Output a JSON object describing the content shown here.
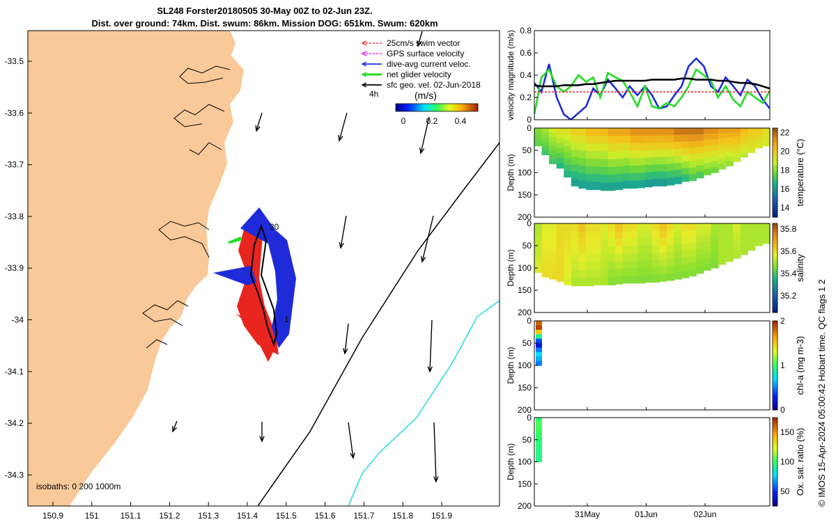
{
  "title": {
    "line1": "SL248 Forster20180505 30-May 00Z to 02-Jun 23Z.",
    "line2": "Dist. over ground: 74km. Dist. swum: 86km. Mission DOG: 651km. Swum: 620km"
  },
  "colors": {
    "land": "#f9c99a",
    "swim": "#e8251f",
    "gps": "#ff00ff",
    "current": "#1f2bd8",
    "net": "#22dd22",
    "geo": "#000000",
    "isobath200": "#000000",
    "isobath1000": "#22dddd",
    "track": "#000000"
  },
  "map": {
    "legend": [
      "25cm/s swim vector",
      "GPS surface velocity",
      "dive-avg current veloc.",
      "net glider velocity",
      "sfc geo. vel. 02-Jun-2018"
    ],
    "legend_time": "4h",
    "colorbar_unit": "(m/s)",
    "colorbar_ticks": [
      "0",
      "0.2",
      "0.4"
    ],
    "isobaths_label": "isobaths: 0   200  1000m",
    "track_labels": [
      "30",
      "1"
    ],
    "lon_ticks": [
      "150.9",
      "151",
      "151.1",
      "151.2",
      "151.3",
      "151.4",
      "151.5",
      "151.6",
      "151.7",
      "151.8",
      "151.9"
    ],
    "lat_ticks": [
      "-33.5",
      "-33.6",
      "-33.7",
      "-33.8",
      "-33.9",
      "-34",
      "-34.1",
      "-34.2",
      "-34.3"
    ]
  },
  "chart_data": [
    {
      "type": "line",
      "title": "",
      "ylabel": "velocity magnitude (m/s)",
      "ylim": [
        0,
        0.8
      ],
      "yticks": [
        "0",
        "0.2",
        "0.4",
        "0.6",
        "0.8"
      ],
      "x_days": [
        0,
        0.12,
        0.25,
        0.38,
        0.5,
        0.62,
        0.75,
        0.88,
        1.0,
        1.12,
        1.25,
        1.38,
        1.5,
        1.62,
        1.75,
        1.88,
        2.0,
        2.12,
        2.25,
        2.38,
        2.5,
        2.62,
        2.75,
        2.88,
        3.0,
        3.12,
        3.25,
        3.38,
        3.5,
        3.62,
        3.75,
        3.88,
        4.0
      ],
      "series": [
        {
          "name": "dive-avg current",
          "color": "#1f2bd8",
          "values": [
            0.33,
            0.25,
            0.5,
            0.2,
            0.05,
            0.0,
            0.06,
            0.12,
            0.28,
            0.22,
            0.36,
            0.28,
            0.2,
            0.3,
            0.22,
            0.3,
            0.22,
            0.1,
            0.12,
            0.22,
            0.3,
            0.48,
            0.55,
            0.48,
            0.3,
            0.25,
            0.38,
            0.3,
            0.22,
            0.36,
            0.3,
            0.18,
            0.1
          ]
        },
        {
          "name": "net glider velocity",
          "color": "#22dd22",
          "values": [
            0.05,
            0.38,
            0.45,
            0.3,
            0.25,
            0.3,
            0.4,
            0.34,
            0.38,
            0.2,
            0.42,
            0.38,
            0.35,
            0.25,
            0.12,
            0.3,
            0.12,
            0.1,
            0.15,
            0.12,
            0.2,
            0.3,
            0.45,
            0.4,
            0.35,
            0.2,
            0.3,
            0.18,
            0.12,
            0.25,
            0.2,
            0.15,
            0.26
          ]
        },
        {
          "name": "swim vector",
          "color": "#e8251f",
          "values": [
            0.25,
            0.25,
            0.25,
            0.25,
            0.25,
            0.25,
            0.25,
            0.25,
            0.25,
            0.25,
            0.25,
            0.25,
            0.25,
            0.25,
            0.25,
            0.25,
            0.25,
            0.25,
            0.25,
            0.25,
            0.25,
            0.25,
            0.25,
            0.25,
            0.25,
            0.25,
            0.25,
            0.25,
            0.25,
            0.25,
            0.25,
            0.25,
            0.25
          ]
        },
        {
          "name": "geo velocity",
          "color": "#000000",
          "values": [
            0.31,
            0.3,
            0.3,
            0.3,
            0.31,
            0.31,
            0.31,
            0.32,
            0.32,
            0.33,
            0.34,
            0.35,
            0.35,
            0.35,
            0.35,
            0.35,
            0.36,
            0.36,
            0.36,
            0.36,
            0.37,
            0.37,
            0.36,
            0.36,
            0.36,
            0.35,
            0.35,
            0.34,
            0.33,
            0.33,
            0.32,
            0.3,
            0.28
          ]
        }
      ]
    },
    {
      "type": "heatmap",
      "ylabel": "Depth (m)",
      "ylim": [
        0,
        200
      ],
      "yticks": [
        "0",
        "50",
        "100",
        "150",
        "200"
      ],
      "clabel": "temperature (°C)",
      "cticks": [
        "14",
        "16",
        "18",
        "20",
        "22"
      ],
      "crange": [
        13,
        22.5
      ],
      "colormap": "thermal",
      "base_depth_m": [
        40,
        60,
        80,
        90,
        110,
        130,
        135,
        138,
        138,
        140,
        140,
        138,
        135,
        135,
        134,
        132,
        130,
        130,
        128,
        125,
        120,
        118,
        112,
        105,
        100,
        92,
        85,
        75,
        65,
        55,
        45,
        40,
        32
      ],
      "surface_value": [
        18,
        18.5,
        19,
        19.5,
        19.5,
        20,
        20,
        20.5,
        20.5,
        20.5,
        21,
        21,
        21,
        21.5,
        21.5,
        21.5,
        21.5,
        21.5,
        21.5,
        22,
        22,
        22,
        22,
        21.5,
        21.5,
        21,
        21,
        21,
        20.5,
        20,
        20,
        19.5,
        19
      ],
      "bottom_value": [
        17.5,
        17,
        17,
        16.5,
        16.5,
        16,
        16,
        16,
        16,
        16,
        16,
        16,
        16,
        16,
        16,
        15.8,
        15.8,
        15.8,
        16,
        16,
        16.5,
        17,
        17,
        17.5,
        17.5,
        18,
        18,
        18.5,
        18.5,
        19,
        19,
        19,
        19
      ]
    },
    {
      "type": "heatmap",
      "ylabel": "Depth (m)",
      "ylim": [
        0,
        200
      ],
      "yticks": [
        "0",
        "50",
        "100",
        "150",
        "200"
      ],
      "clabel": "salinity",
      "cticks": [
        "35.2",
        "35.4",
        "35.6",
        "35.8"
      ],
      "crange": [
        35.05,
        35.85
      ],
      "colormap": "haline",
      "base_depth_m": [
        110,
        120,
        125,
        130,
        138,
        140,
        140,
        140,
        138,
        138,
        138,
        136,
        134,
        134,
        134,
        132,
        132,
        130,
        128,
        125,
        122,
        118,
        112,
        105,
        100,
        92,
        85,
        78,
        70,
        60,
        50,
        45,
        40
      ],
      "surface_value": [
        35.5,
        35.55,
        35.55,
        35.6,
        35.6,
        35.6,
        35.65,
        35.6,
        35.6,
        35.55,
        35.6,
        35.65,
        35.6,
        35.6,
        35.55,
        35.55,
        35.6,
        35.65,
        35.6,
        35.55,
        35.6,
        35.6,
        35.55,
        35.55,
        35.5,
        35.5,
        35.5,
        35.55,
        35.5,
        35.5,
        35.5,
        35.5,
        35.5
      ],
      "bottom_value": [
        35.55,
        35.6,
        35.6,
        35.6,
        35.55,
        35.5,
        35.5,
        35.5,
        35.5,
        35.5,
        35.45,
        35.45,
        35.45,
        35.45,
        35.45,
        35.45,
        35.45,
        35.45,
        35.45,
        35.45,
        35.45,
        35.45,
        35.45,
        35.45,
        35.45,
        35.5,
        35.5,
        35.5,
        35.5,
        35.5,
        35.5,
        35.5,
        35.5
      ]
    },
    {
      "type": "heatmap",
      "ylabel": "Depth (m)",
      "ylim": [
        0,
        200
      ],
      "yticks": [
        "0",
        "50",
        "100",
        "150",
        "200"
      ],
      "clabel": "chl-a (mg m-3)",
      "cticks": [
        "0",
        "1",
        "2"
      ],
      "crange": [
        0,
        2
      ],
      "colormap": "jet",
      "profile_depth_m": [
        0,
        10,
        20,
        30,
        40,
        50,
        60,
        70,
        80,
        90
      ],
      "profile_value": [
        1.8,
        1.9,
        1.5,
        0.9,
        0.4,
        0.2,
        0.5,
        0.7,
        0.6,
        0.5
      ]
    },
    {
      "type": "heatmap",
      "ylabel": "Depth (m)",
      "ylim": [
        0,
        200
      ],
      "yticks": [
        "0",
        "50",
        "100",
        "150",
        "200"
      ],
      "clabel": "Ox. sat. ratio (%)",
      "cticks": [
        "50",
        "100",
        "150"
      ],
      "crange": [
        25,
        175
      ],
      "colormap": "jet",
      "profile_depth_m": [
        0,
        10,
        20,
        30,
        40,
        50,
        60,
        70,
        80,
        90
      ],
      "profile_value": [
        100,
        103,
        102,
        100,
        98,
        97,
        96,
        95,
        94,
        95
      ]
    }
  ],
  "xaxis": {
    "ticks": [
      "31May",
      "01Jun",
      "02Jun"
    ]
  },
  "footer": "© IMOS 15-Apr-2024 05:00:42 Hobart time. QC flags 1  2"
}
